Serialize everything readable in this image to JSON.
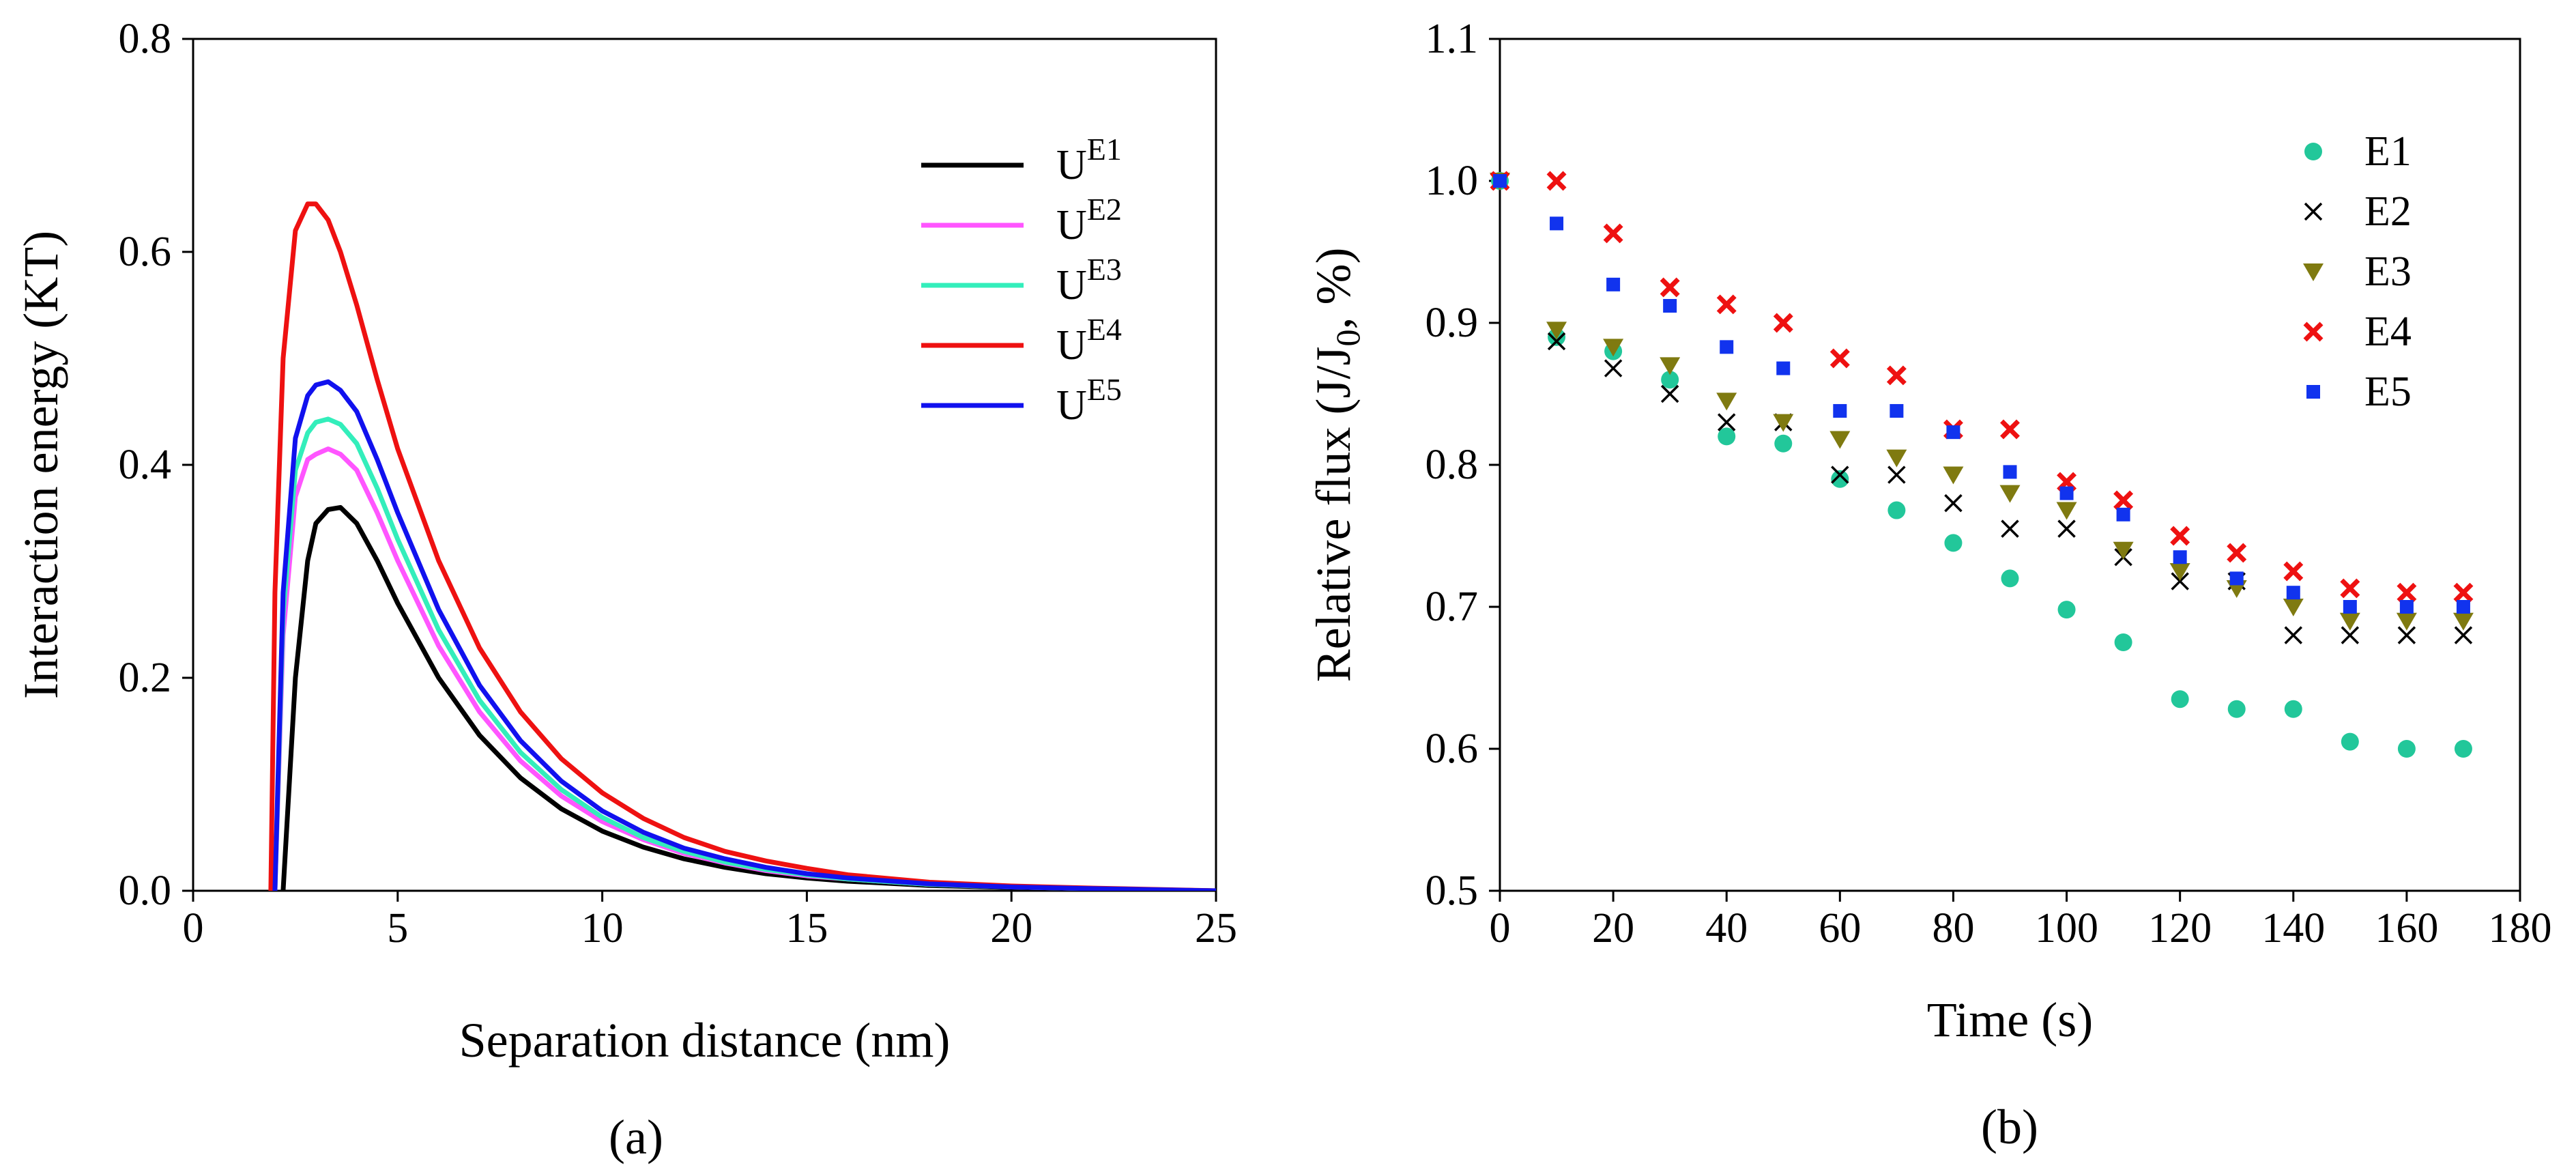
{
  "chart_data": [
    {
      "type": "line",
      "panel_label": "(a)",
      "xlabel": "Separation distance (nm)",
      "ylabel": "Interaction energy (KT)",
      "xlim": [
        0,
        25
      ],
      "ylim": [
        0,
        0.8
      ],
      "x_ticks": [
        0,
        5,
        10,
        15,
        20,
        25
      ],
      "x_tick_labels": [
        "0",
        "5",
        "10",
        "15",
        "20",
        "25"
      ],
      "y_ticks": [
        0,
        0.2,
        0.4,
        0.6,
        0.8
      ],
      "y_tick_labels": [
        "0.0",
        "0.2",
        "0.4",
        "0.6",
        "0.8"
      ],
      "legend_position": "top-right",
      "x": [
        1.9,
        2.0,
        2.2,
        2.5,
        2.8,
        3.0,
        3.3,
        3.6,
        4.0,
        4.5,
        5.0,
        6.0,
        7.0,
        8.0,
        9.0,
        10.0,
        11.0,
        12.0,
        13.0,
        14.0,
        15.0,
        16.0,
        18.0,
        20.0,
        22.0,
        25.0
      ],
      "series": [
        {
          "name": "U",
          "superscript": "E1",
          "color": "#000000",
          "values": [
            null,
            null,
            0.0,
            0.2,
            0.31,
            0.345,
            0.358,
            0.36,
            0.345,
            0.31,
            0.27,
            0.2,
            0.146,
            0.106,
            0.077,
            0.056,
            0.041,
            0.03,
            0.022,
            0.016,
            0.012,
            0.009,
            0.005,
            0.003,
            0.0015,
            0.0
          ]
        },
        {
          "name": "U",
          "superscript": "E2",
          "color": "#ff55ff",
          "values": [
            null,
            0.0,
            0.24,
            0.37,
            0.405,
            0.41,
            0.415,
            0.41,
            0.395,
            0.355,
            0.31,
            0.23,
            0.168,
            0.122,
            0.089,
            0.065,
            0.048,
            0.035,
            0.026,
            0.019,
            0.014,
            0.011,
            0.006,
            0.0035,
            0.002,
            0.0
          ]
        },
        {
          "name": "U",
          "superscript": "E3",
          "color": "#33eebb",
          "values": [
            null,
            0.0,
            0.26,
            0.395,
            0.43,
            0.44,
            0.443,
            0.438,
            0.42,
            0.378,
            0.33,
            0.245,
            0.179,
            0.13,
            0.095,
            0.069,
            0.05,
            0.037,
            0.027,
            0.02,
            0.015,
            0.011,
            0.006,
            0.0035,
            0.002,
            0.0
          ]
        },
        {
          "name": "U",
          "superscript": "E4",
          "color": "#ee1111",
          "values": [
            0.0,
            0.28,
            0.5,
            0.62,
            0.645,
            0.645,
            0.63,
            0.6,
            0.55,
            0.48,
            0.415,
            0.31,
            0.228,
            0.168,
            0.124,
            0.092,
            0.068,
            0.05,
            0.037,
            0.028,
            0.021,
            0.015,
            0.008,
            0.0045,
            0.0025,
            0.0
          ]
        },
        {
          "name": "U",
          "superscript": "E5",
          "color": "#1111ee",
          "values": [
            null,
            0.0,
            0.28,
            0.425,
            0.465,
            0.475,
            0.478,
            0.47,
            0.45,
            0.405,
            0.355,
            0.264,
            0.193,
            0.141,
            0.103,
            0.075,
            0.055,
            0.04,
            0.03,
            0.022,
            0.016,
            0.012,
            0.0065,
            0.0035,
            0.002,
            0.0
          ]
        }
      ]
    },
    {
      "type": "scatter",
      "panel_label": "(b)",
      "xlabel": "Time (s)",
      "ylabel_parts": [
        "Relative flux (J/J",
        "0",
        ", %)"
      ],
      "xlim": [
        0,
        180
      ],
      "ylim": [
        0.5,
        1.1
      ],
      "x_ticks": [
        0,
        20,
        40,
        60,
        80,
        100,
        120,
        140,
        160,
        180
      ],
      "x_tick_labels": [
        "0",
        "20",
        "40",
        "60",
        "80",
        "100",
        "120",
        "140",
        "160",
        "180"
      ],
      "y_ticks": [
        0.5,
        0.6,
        0.7,
        0.8,
        0.9,
        1.0,
        1.1
      ],
      "y_tick_labels": [
        "0.5",
        "0.6",
        "0.7",
        "0.8",
        "0.9",
        "1.0",
        "1.1"
      ],
      "legend_position": "top-right",
      "x": [
        0,
        10,
        20,
        30,
        40,
        50,
        60,
        70,
        80,
        90,
        100,
        110,
        120,
        130,
        140,
        150,
        160,
        170
      ],
      "series": [
        {
          "name": "E1",
          "marker": "circle",
          "color": "#22c79a",
          "values": [
            1.0,
            0.89,
            0.88,
            0.86,
            0.82,
            0.815,
            0.79,
            0.768,
            0.745,
            0.72,
            0.698,
            0.675,
            0.635,
            0.628,
            0.628,
            0.605,
            0.6,
            0.6
          ]
        },
        {
          "name": "E2",
          "marker": "x",
          "color": "#000000",
          "values": [
            1.0,
            0.887,
            0.868,
            0.85,
            0.83,
            0.83,
            0.793,
            0.793,
            0.773,
            0.755,
            0.755,
            0.735,
            0.718,
            0.718,
            0.68,
            0.68,
            0.68,
            0.68
          ]
        },
        {
          "name": "E3",
          "marker": "triangle-down",
          "color": "#7f7a10",
          "values": [
            1.0,
            0.895,
            0.883,
            0.87,
            0.845,
            0.83,
            0.818,
            0.805,
            0.793,
            0.78,
            0.768,
            0.74,
            0.725,
            0.713,
            0.7,
            0.69,
            0.69,
            0.69
          ]
        },
        {
          "name": "E4",
          "marker": "x-bold",
          "color": "#ee1111",
          "values": [
            1.0,
            1.0,
            0.963,
            0.925,
            0.913,
            0.9,
            0.875,
            0.863,
            0.825,
            0.825,
            0.788,
            0.775,
            0.75,
            0.738,
            0.725,
            0.713,
            0.71,
            0.71
          ]
        },
        {
          "name": "E5",
          "marker": "square",
          "color": "#1133ee",
          "values": [
            1.0,
            0.97,
            0.927,
            0.912,
            0.883,
            0.868,
            0.838,
            0.838,
            0.823,
            0.795,
            0.78,
            0.765,
            0.735,
            0.72,
            0.71,
            0.7,
            0.7,
            0.7
          ]
        }
      ]
    }
  ]
}
